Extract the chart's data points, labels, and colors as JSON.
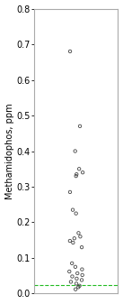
{
  "title": "",
  "ylabel": "Methamidophos, ppm",
  "ylim": [
    0,
    0.8
  ],
  "yticks": [
    0,
    0.1,
    0.2,
    0.3,
    0.4,
    0.5,
    0.6,
    0.7,
    0.8
  ],
  "xlim": [
    0.7,
    1.3
  ],
  "dashed_line_y": 0.025,
  "dashed_line_color": "#22bb22",
  "point_color": "none",
  "point_edgecolor": "#444444",
  "point_size": 6,
  "point_linewidth": 0.6,
  "x_values": [
    1,
    1,
    1,
    1,
    1,
    1,
    1,
    1,
    1,
    1,
    1,
    1,
    1,
    1,
    1,
    1,
    1,
    1,
    1,
    1,
    1,
    1,
    1,
    1,
    1,
    1,
    1,
    1,
    1,
    1
  ],
  "y_values": [
    0.68,
    0.47,
    0.4,
    0.35,
    0.34,
    0.335,
    0.33,
    0.285,
    0.235,
    0.225,
    0.17,
    0.16,
    0.155,
    0.148,
    0.143,
    0.13,
    0.085,
    0.075,
    0.068,
    0.062,
    0.057,
    0.052,
    0.048,
    0.042,
    0.038,
    0.033,
    0.028,
    0.022,
    0.018,
    0.012
  ],
  "figsize": [
    1.37,
    3.37
  ],
  "dpi": 100,
  "background_color": "#ffffff",
  "ylabel_fontsize": 7,
  "tick_fontsize": 7,
  "spine_color": "#aaaaaa",
  "spine_linewidth": 0.8
}
